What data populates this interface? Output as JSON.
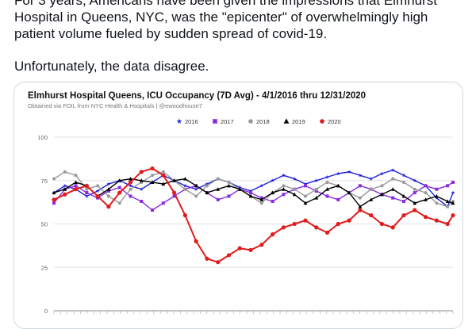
{
  "tweet": {
    "line1": "For 3 years, Americans have been given the impressions that Elmhurst",
    "line2": "Hospital in Queens, NYC,  was the \"epicenter\" of overwhelmingly high",
    "line3": "patient volume fueled by sudden spread of covid-19.",
    "paragraph2": "Unfortunately, the data disagree."
  },
  "chart_data": {
    "type": "line",
    "title": "Elmhurst Hospital Queens, ICU Occupancy (7D Avg) - 4/1/2016 thru 12/31/2020",
    "subtitle": "Obtained via FOIL from NYC Health & Hospitals | @ewoodhouse7",
    "xlabel": "",
    "ylabel": "",
    "ylim": [
      0,
      100
    ],
    "yticks": [
      0,
      25,
      50,
      75,
      100
    ],
    "grid": true,
    "legend_position": "top",
    "x": [
      0,
      10,
      20,
      30,
      40,
      50,
      60,
      70,
      80,
      90,
      100,
      110,
      120,
      130,
      140,
      150,
      160,
      170,
      180,
      190,
      200,
      210,
      220,
      230,
      240,
      250,
      260,
      270,
      280,
      290,
      300,
      310,
      320,
      330,
      340,
      350,
      360,
      365
    ],
    "series": [
      {
        "name": "2016",
        "color": "#1f1fe0",
        "marker": "star",
        "values": [
          68,
          72,
          70,
          66,
          69,
          73,
          75,
          72,
          70,
          74,
          78,
          75,
          72,
          70,
          73,
          76,
          74,
          71,
          69,
          72,
          75,
          78,
          76,
          73,
          75,
          77,
          79,
          80,
          78,
          76,
          79,
          81,
          78,
          75,
          72,
          65,
          60,
          68
        ]
      },
      {
        "name": "2017",
        "color": "#8a2be2",
        "marker": "square",
        "values": [
          62,
          70,
          72,
          68,
          65,
          69,
          71,
          66,
          63,
          58,
          62,
          66,
          70,
          72,
          68,
          64,
          66,
          70,
          68,
          65,
          63,
          67,
          70,
          72,
          69,
          66,
          64,
          68,
          72,
          70,
          67,
          65,
          63,
          68,
          72,
          70,
          72,
          74
        ]
      },
      {
        "name": "2018",
        "color": "#999999",
        "marker": "circle",
        "values": [
          76,
          80,
          78,
          70,
          72,
          66,
          62,
          70,
          74,
          78,
          80,
          75,
          70,
          66,
          72,
          76,
          74,
          70,
          66,
          62,
          68,
          72,
          70,
          66,
          70,
          74,
          72,
          68,
          65,
          70,
          72,
          76,
          74,
          70,
          68,
          62,
          60,
          63
        ]
      },
      {
        "name": "2019",
        "color": "#000000",
        "marker": "triangle",
        "values": [
          68,
          70,
          74,
          72,
          66,
          70,
          75,
          76,
          75,
          74,
          73,
          75,
          76,
          72,
          68,
          70,
          72,
          70,
          66,
          64,
          68,
          70,
          67,
          62,
          65,
          70,
          72,
          68,
          60,
          64,
          67,
          70,
          66,
          62,
          64,
          66,
          63,
          62
        ]
      },
      {
        "name": "2020",
        "color": "#e01b1b",
        "marker": "circle",
        "values": [
          64,
          67,
          70,
          72,
          66,
          60,
          68,
          74,
          80,
          82,
          78,
          68,
          55,
          40,
          30,
          28,
          32,
          36,
          35,
          38,
          44,
          48,
          50,
          52,
          48,
          45,
          50,
          52,
          58,
          55,
          50,
          48,
          55,
          58,
          54,
          52,
          50,
          55
        ]
      }
    ]
  },
  "colors": {
    "accent": "#e01b1b",
    "card_border": "#cfd9de"
  }
}
